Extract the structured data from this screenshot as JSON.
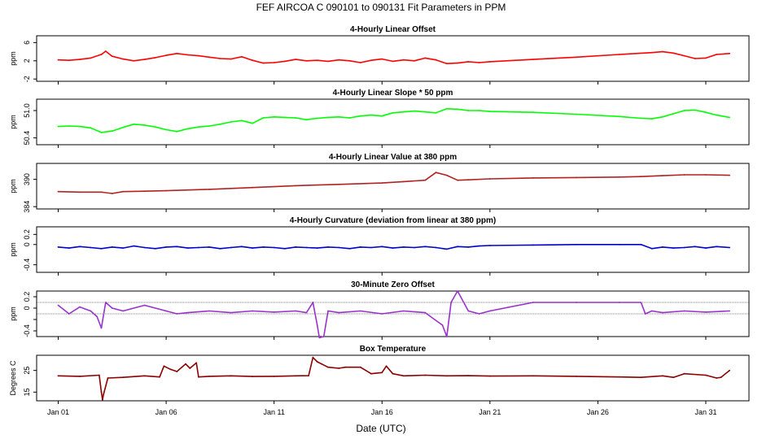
{
  "title": "FEF   AIRCOA C   090101 to 090131   Fit Parameters in PPM",
  "xlabel": "Date (UTC)",
  "x_ticks": [
    {
      "day": 1,
      "label": "Jan 01"
    },
    {
      "day": 6,
      "label": "Jan 06"
    },
    {
      "day": 11,
      "label": "Jan 11"
    },
    {
      "day": 16,
      "label": "Jan 16"
    },
    {
      "day": 21,
      "label": "Jan 21"
    },
    {
      "day": 26,
      "label": "Jan 26"
    },
    {
      "day": 31,
      "label": "Jan 31"
    }
  ],
  "x_range": [
    0.0,
    33.0
  ],
  "chart_data": [
    {
      "type": "line",
      "title": "4-Hourly Linear Offset",
      "ylabel": "ppm",
      "color": "#ff0000",
      "ylim": [
        -2.5,
        7.5
      ],
      "yticks": [
        -2,
        2,
        6
      ],
      "ytick_labels": [
        "-2",
        "2",
        "6"
      ],
      "x": [
        1.0,
        1.5,
        2.0,
        2.5,
        3.0,
        3.2,
        3.5,
        4.0,
        4.5,
        5.0,
        5.5,
        6.0,
        6.5,
        7.0,
        7.5,
        8.0,
        8.5,
        9.0,
        9.5,
        10.0,
        10.5,
        11.0,
        11.5,
        12.0,
        12.5,
        13.0,
        13.5,
        14.0,
        14.5,
        15.0,
        15.5,
        16.0,
        16.5,
        17.0,
        17.5,
        18.0,
        18.5,
        19.0,
        19.5,
        20.0,
        20.5,
        21.0,
        23.0,
        25.0,
        27.0,
        28.5,
        29.0,
        29.5,
        30.0,
        30.5,
        31.0,
        31.5,
        32.1
      ],
      "y": [
        2.2,
        2.1,
        2.3,
        2.6,
        3.4,
        4.1,
        3.0,
        2.4,
        2.0,
        2.3,
        2.7,
        3.2,
        3.6,
        3.3,
        3.1,
        2.8,
        2.5,
        2.4,
        2.9,
        2.1,
        1.5,
        1.6,
        1.9,
        2.3,
        2.0,
        2.1,
        1.9,
        2.2,
        2.0,
        1.6,
        2.1,
        2.4,
        1.9,
        2.2,
        2.0,
        2.6,
        2.2,
        1.4,
        1.5,
        1.8,
        1.6,
        1.8,
        2.3,
        2.8,
        3.4,
        3.8,
        4.0,
        3.7,
        3.1,
        2.5,
        2.6,
        3.4,
        3.6
      ]
    },
    {
      "type": "line",
      "title": "4-Hourly Linear Slope * 50 ppm",
      "ylabel": "ppm",
      "color": "#00ff00",
      "ylim": [
        50.25,
        51.25
      ],
      "yticks": [
        50.4,
        51.0
      ],
      "ytick_labels": [
        "50.4",
        "51.0"
      ],
      "x": [
        1.0,
        1.5,
        2.0,
        2.5,
        3.0,
        3.5,
        4.0,
        4.5,
        5.0,
        5.5,
        6.0,
        6.5,
        7.0,
        7.5,
        8.0,
        8.5,
        9.0,
        9.5,
        10.0,
        10.5,
        11.0,
        11.5,
        12.0,
        12.5,
        13.0,
        13.5,
        14.0,
        14.5,
        15.0,
        15.5,
        16.0,
        16.5,
        17.0,
        17.5,
        18.0,
        18.5,
        19.0,
        19.5,
        20.0,
        20.5,
        21.0,
        23.0,
        25.0,
        27.0,
        28.0,
        28.5,
        29.0,
        29.5,
        30.0,
        30.5,
        31.0,
        31.5,
        32.1
      ],
      "y": [
        50.65,
        50.66,
        50.65,
        50.62,
        50.52,
        50.55,
        50.63,
        50.7,
        50.68,
        50.64,
        50.58,
        50.54,
        50.6,
        50.64,
        50.66,
        50.7,
        50.75,
        50.78,
        50.72,
        50.84,
        50.86,
        50.85,
        50.84,
        50.8,
        50.83,
        50.85,
        50.86,
        50.84,
        50.88,
        50.9,
        50.88,
        50.95,
        50.97,
        50.99,
        50.97,
        50.95,
        51.04,
        51.03,
        51.0,
        51.0,
        50.98,
        50.96,
        50.92,
        50.87,
        50.83,
        50.82,
        50.86,
        50.93,
        51.0,
        51.01,
        50.96,
        50.9,
        50.85
      ]
    },
    {
      "type": "line",
      "title": "4-Hourly Linear Value at 380 ppm",
      "ylabel": "ppm",
      "color": "#b22222",
      "ylim": [
        383.5,
        393.5
      ],
      "yticks": [
        384,
        390
      ],
      "ytick_labels": [
        "384",
        "390"
      ],
      "x": [
        1.0,
        2.0,
        3.0,
        3.5,
        4.0,
        5.0,
        6.0,
        8.0,
        10.0,
        12.0,
        14.0,
        16.0,
        17.0,
        18.0,
        18.5,
        19.0,
        19.5,
        20.0,
        21.0,
        23.0,
        25.0,
        27.0,
        28.0,
        29.0,
        30.0,
        31.0,
        32.1
      ],
      "y": [
        387.3,
        387.2,
        387.2,
        386.9,
        387.3,
        387.4,
        387.5,
        387.8,
        388.2,
        388.6,
        388.9,
        389.2,
        389.5,
        389.8,
        391.5,
        390.9,
        389.8,
        389.9,
        390.1,
        390.3,
        390.4,
        390.5,
        390.6,
        390.8,
        391.0,
        391.0,
        390.9
      ]
    },
    {
      "type": "line",
      "title": "4-Hourly Curvature (deviation from linear at 380 ppm)",
      "ylabel": "ppm",
      "color": "#0000cd",
      "ylim": [
        -0.55,
        0.35
      ],
      "yticks": [
        -0.4,
        0.0,
        0.2
      ],
      "ytick_labels": [
        "-0.4",
        "0",
        "0.2"
      ],
      "x": [
        1.0,
        1.5,
        2.0,
        2.5,
        3.0,
        3.5,
        4.0,
        4.5,
        5.0,
        5.5,
        6.0,
        6.5,
        7.0,
        7.5,
        8.0,
        8.5,
        9.0,
        9.5,
        10.0,
        10.5,
        11.0,
        11.5,
        12.0,
        12.5,
        13.0,
        13.5,
        14.0,
        14.5,
        15.0,
        15.5,
        16.0,
        16.5,
        17.0,
        17.5,
        18.0,
        18.5,
        19.0,
        19.5,
        20.0,
        20.5,
        21.0,
        23.0,
        25.0,
        27.0,
        28.0,
        28.5,
        29.0,
        29.5,
        30.0,
        30.5,
        31.0,
        31.5,
        32.1
      ],
      "y": [
        -0.05,
        -0.07,
        -0.04,
        -0.06,
        -0.08,
        -0.05,
        -0.07,
        -0.03,
        -0.06,
        -0.08,
        -0.05,
        -0.04,
        -0.07,
        -0.06,
        -0.05,
        -0.08,
        -0.06,
        -0.04,
        -0.07,
        -0.05,
        -0.06,
        -0.08,
        -0.05,
        -0.06,
        -0.07,
        -0.05,
        -0.06,
        -0.08,
        -0.05,
        -0.06,
        -0.04,
        -0.07,
        -0.05,
        -0.06,
        -0.04,
        -0.06,
        -0.09,
        -0.04,
        -0.05,
        -0.03,
        -0.02,
        -0.01,
        0.0,
        0.0,
        0.0,
        -0.08,
        -0.05,
        -0.07,
        -0.06,
        -0.04,
        -0.07,
        -0.04,
        -0.06
      ]
    },
    {
      "type": "line",
      "title": "30-Minute Zero Offset",
      "ylabel": "ppm",
      "color": "#9932cc",
      "ylim": [
        -0.5,
        0.3
      ],
      "yticks": [
        -0.4,
        -0.2,
        0.0,
        0.2
      ],
      "ytick_labels": [
        "-0.4",
        "",
        "0",
        "0.2"
      ],
      "ref_lines": [
        0.1,
        -0.1
      ],
      "x": [
        1.0,
        1.5,
        2.0,
        2.5,
        2.8,
        3.0,
        3.2,
        3.5,
        4.0,
        5.0,
        6.0,
        6.5,
        7.0,
        8.0,
        9.0,
        10.0,
        11.0,
        12.0,
        12.5,
        12.8,
        13.0,
        13.1,
        13.3,
        13.5,
        14.0,
        15.0,
        16.0,
        17.0,
        18.0,
        18.8,
        19.0,
        19.2,
        19.5,
        20.0,
        20.5,
        21.0,
        23.0,
        25.0,
        27.0,
        28.0,
        28.2,
        28.5,
        29.0,
        30.0,
        31.0,
        32.1
      ],
      "y": [
        0.05,
        -0.1,
        0.02,
        -0.05,
        -0.15,
        -0.35,
        0.1,
        0.0,
        -0.05,
        0.05,
        -0.05,
        -0.1,
        -0.08,
        -0.05,
        -0.08,
        -0.05,
        -0.07,
        -0.05,
        -0.08,
        0.1,
        -0.3,
        -0.52,
        -0.5,
        -0.05,
        -0.08,
        -0.05,
        -0.1,
        -0.05,
        -0.08,
        -0.3,
        -0.5,
        0.1,
        0.3,
        -0.05,
        -0.1,
        -0.05,
        0.1,
        0.1,
        0.1,
        0.1,
        -0.1,
        -0.05,
        -0.08,
        -0.05,
        -0.07,
        -0.05
      ]
    },
    {
      "type": "line",
      "title": "Box Temperature",
      "ylabel": "Degrees C",
      "color": "#8b0000",
      "ylim": [
        11,
        32
      ],
      "yticks": [
        15,
        25
      ],
      "ytick_labels": [
        "15",
        "25"
      ],
      "x": [
        1.0,
        2.0,
        2.9,
        3.0,
        3.05,
        3.1,
        3.3,
        4.0,
        5.0,
        5.7,
        5.9,
        6.2,
        6.5,
        6.9,
        7.1,
        7.4,
        7.5,
        8.0,
        9.0,
        10.0,
        11.0,
        12.0,
        12.6,
        12.8,
        13.0,
        13.2,
        13.5,
        14.0,
        14.3,
        15.0,
        15.5,
        16.0,
        16.2,
        16.5,
        17.0,
        18.0,
        19.0,
        20.0,
        21.0,
        23.0,
        25.0,
        27.0,
        28.0,
        29.0,
        29.5,
        30.0,
        31.0,
        31.5,
        31.7,
        32.1
      ],
      "y": [
        22.5,
        22.3,
        22.8,
        15.0,
        11.5,
        14.0,
        21.5,
        21.8,
        22.5,
        22.0,
        27.0,
        25.5,
        24.5,
        28.0,
        26.0,
        28.5,
        22.0,
        22.3,
        22.5,
        22.2,
        22.3,
        22.5,
        22.6,
        31.0,
        29.0,
        28.0,
        26.5,
        26.0,
        26.5,
        26.5,
        23.5,
        24.0,
        27.0,
        23.5,
        22.5,
        22.8,
        22.5,
        22.6,
        22.4,
        22.5,
        22.3,
        22.0,
        21.8,
        22.5,
        21.8,
        23.5,
        22.8,
        21.5,
        21.8,
        25.0
      ]
    }
  ]
}
